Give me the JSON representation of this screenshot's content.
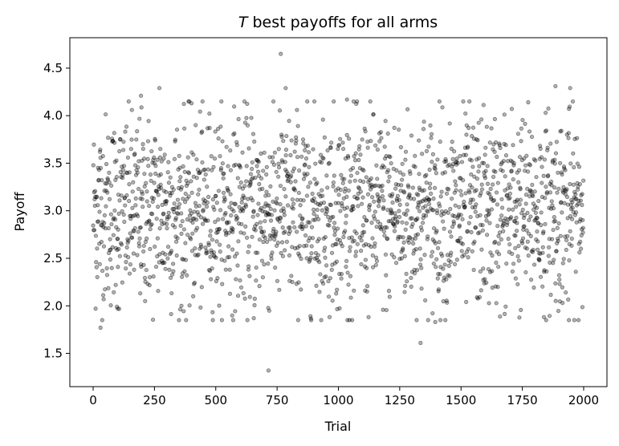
{
  "chart_data": {
    "type": "scatter",
    "title_italic": "T",
    "title_rest": " best payoffs for all arms",
    "xlabel": "Trial",
    "ylabel": "Payoff",
    "xlim": [
      -95,
      2095
    ],
    "ylim": [
      1.15,
      4.82
    ],
    "xticks": [
      0,
      250,
      500,
      750,
      1000,
      1250,
      1500,
      1750,
      2000
    ],
    "xtick_labels": [
      "0",
      "250",
      "500",
      "750",
      "1000",
      "1250",
      "1500",
      "1750",
      "2000"
    ],
    "yticks": [
      1.5,
      2.0,
      2.5,
      3.0,
      3.5,
      4.0,
      4.5
    ],
    "ytick_labels": [
      "1.5",
      "2.0",
      "2.5",
      "3.0",
      "3.5",
      "4.0",
      "4.5"
    ],
    "grid": false,
    "legend": "none",
    "marker_color": "#000000",
    "n_points": 2000,
    "mean": 3.0,
    "std": 0.5,
    "notable_points": [
      {
        "x": 765,
        "y": 4.65
      },
      {
        "x": 715,
        "y": 1.32
      },
      {
        "x": 30,
        "y": 1.77
      },
      {
        "x": 1335,
        "y": 1.61
      },
      {
        "x": 1885,
        "y": 4.31
      },
      {
        "x": 1945,
        "y": 4.29
      },
      {
        "x": 270,
        "y": 4.29
      },
      {
        "x": 785,
        "y": 4.29
      },
      {
        "x": 195,
        "y": 4.21
      },
      {
        "x": 1035,
        "y": 4.17
      },
      {
        "x": 1395,
        "y": 1.83
      },
      {
        "x": 655,
        "y": 1.87
      },
      {
        "x": 1940,
        "y": 1.85
      },
      {
        "x": 100,
        "y": 1.97
      },
      {
        "x": 360,
        "y": 2.0
      }
    ]
  }
}
